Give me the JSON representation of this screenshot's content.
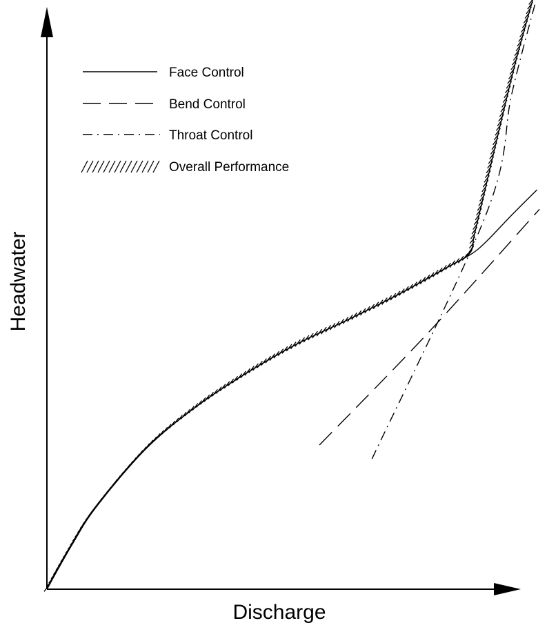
{
  "chart_data": {
    "type": "line",
    "title": "",
    "xlabel": "Discharge",
    "ylabel": "Headwater",
    "grid": false,
    "legend_placement": "top-left",
    "xlim": [
      0,
      100
    ],
    "ylim": [
      0,
      100
    ],
    "series": [
      {
        "name": "Face Control",
        "style": "solid",
        "points": [
          [
            0,
            0
          ],
          [
            5,
            8
          ],
          [
            10,
            15
          ],
          [
            20,
            25.5
          ],
          [
            30,
            33
          ],
          [
            40,
            39
          ],
          [
            50,
            44.2
          ],
          [
            60,
            48.5
          ],
          [
            70,
            53
          ],
          [
            80,
            58
          ],
          [
            85,
            60.5
          ],
          [
            88,
            62.8
          ],
          [
            93,
            67.5
          ],
          [
            98,
            72
          ]
        ]
      },
      {
        "name": "Bend Control",
        "style": "dashed",
        "points": [
          [
            54.5,
            26
          ],
          [
            76,
            46
          ],
          [
            98.5,
            68.5
          ]
        ]
      },
      {
        "name": "Throat Control",
        "style": "dash-dot",
        "points": [
          [
            65,
            23.5
          ],
          [
            88,
            68
          ],
          [
            93,
            89.5
          ],
          [
            98.5,
            108.5
          ]
        ]
      },
      {
        "name": "Overall Performance",
        "style": "hatched",
        "points": [
          [
            0,
            0
          ],
          [
            5,
            8
          ],
          [
            10,
            15
          ],
          [
            20,
            25.5
          ],
          [
            30,
            33
          ],
          [
            40,
            39
          ],
          [
            50,
            44.2
          ],
          [
            60,
            48.5
          ],
          [
            70,
            53
          ],
          [
            80,
            58
          ],
          [
            84.5,
            60.5
          ],
          [
            85.5,
            64
          ],
          [
            88,
            73.5
          ],
          [
            91,
            85
          ],
          [
            94,
            96
          ],
          [
            98,
            109
          ]
        ]
      }
    ]
  }
}
